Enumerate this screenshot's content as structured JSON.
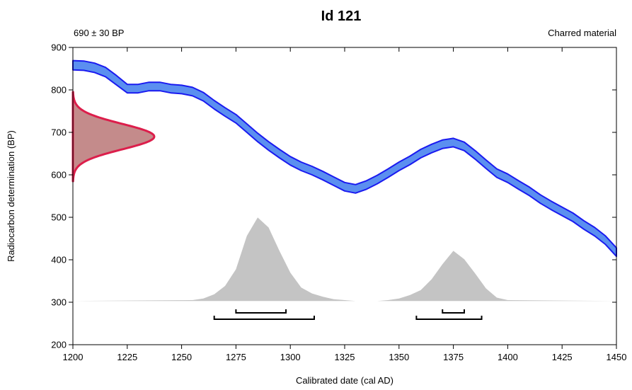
{
  "chart_data": {
    "type": "area",
    "title": "Id 121",
    "subtitle_left": "690 ± 30 BP",
    "subtitle_right": "Charred material",
    "xlabel": "Calibrated date (cal AD)",
    "ylabel": "Radiocarbon determination (BP)",
    "xlim": [
      1200,
      1450
    ],
    "ylim": [
      200,
      900
    ],
    "x_ticks": [
      "1200",
      "1225",
      "1250",
      "1275",
      "1300",
      "1325",
      "1350",
      "1375",
      "1400",
      "1425",
      "1450"
    ],
    "y_ticks": [
      "200",
      "300",
      "400",
      "500",
      "600",
      "700",
      "800",
      "900"
    ],
    "grid": false,
    "calibration_curve": {
      "x": [
        1200,
        1205,
        1210,
        1215,
        1220,
        1225,
        1230,
        1235,
        1240,
        1245,
        1250,
        1255,
        1260,
        1265,
        1270,
        1275,
        1280,
        1285,
        1290,
        1295,
        1300,
        1305,
        1310,
        1315,
        1320,
        1325,
        1330,
        1335,
        1340,
        1345,
        1350,
        1355,
        1360,
        1365,
        1370,
        1375,
        1380,
        1385,
        1390,
        1395,
        1400,
        1405,
        1410,
        1415,
        1420,
        1425,
        1430,
        1435,
        1440,
        1445,
        1450
      ],
      "mean": [
        858,
        857,
        852,
        842,
        823,
        803,
        803,
        808,
        808,
        803,
        801,
        796,
        784,
        765,
        748,
        732,
        710,
        688,
        668,
        650,
        633,
        620,
        610,
        598,
        585,
        572,
        567,
        576,
        589,
        604,
        620,
        634,
        650,
        662,
        672,
        676,
        667,
        647,
        625,
        604,
        592,
        576,
        561,
        543,
        528,
        514,
        500,
        482,
        466,
        446,
        418
      ],
      "sigma": [
        11,
        11,
        11,
        11,
        11,
        10,
        10,
        10,
        10,
        10,
        10,
        10,
        10,
        10,
        10,
        10,
        10,
        10,
        10,
        10,
        10,
        10,
        10,
        10,
        10,
        10,
        10,
        10,
        10,
        10,
        10,
        10,
        10,
        10,
        10,
        10,
        10,
        10,
        10,
        10,
        10,
        10,
        10,
        10,
        10,
        10,
        10,
        10,
        10,
        10,
        10
      ]
    },
    "radiocarbon_distribution": {
      "mean_bp": 690,
      "error_bp": 30
    },
    "posterior_distribution": {
      "x": [
        1200,
        1255,
        1260,
        1265,
        1270,
        1275,
        1280,
        1285,
        1290,
        1295,
        1300,
        1305,
        1310,
        1315,
        1320,
        1325,
        1330,
        1335,
        1340,
        1345,
        1350,
        1355,
        1360,
        1365,
        1370,
        1375,
        1380,
        1385,
        1390,
        1395,
        1400,
        1450
      ],
      "density": [
        0,
        0.01,
        0.03,
        0.08,
        0.18,
        0.38,
        0.78,
        1.0,
        0.88,
        0.6,
        0.34,
        0.16,
        0.09,
        0.05,
        0.02,
        0.01,
        0,
        0,
        0,
        0.01,
        0.03,
        0.07,
        0.13,
        0.26,
        0.44,
        0.6,
        0.5,
        0.33,
        0.15,
        0.04,
        0.01,
        0
      ]
    },
    "hpd_ranges": {
      "sigma1": [
        [
          1275,
          1298
        ],
        [
          1370,
          1380
        ]
      ],
      "sigma2": [
        [
          1265,
          1311
        ],
        [
          1358,
          1388
        ]
      ]
    },
    "colors": {
      "curve_fill": "#5b8ff0",
      "curve_edge": "#1a1af0",
      "rc_fill": "#c48b8b",
      "rc_edge": "#dc1e4b",
      "posterior": "#c4c4c4",
      "axis": "#000000"
    }
  }
}
